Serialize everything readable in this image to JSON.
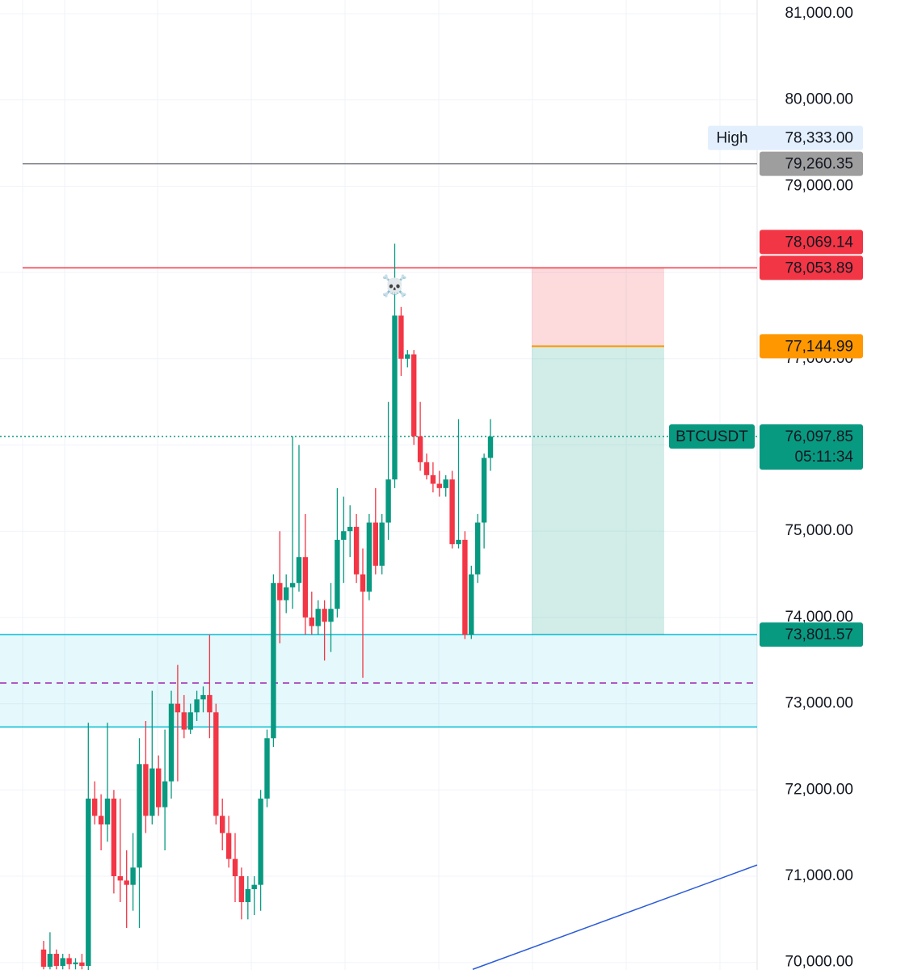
{
  "chart_data": {
    "type": "candlestick",
    "symbol": {
      "name": "BTCUSDT",
      "value": 76097.85,
      "label": "76,097.85",
      "countdown": "05:11:34",
      "color": "#089981"
    },
    "up_color": "#089981",
    "down_color": "#f23645",
    "open": [
      70150,
      69950,
      70100,
      69960,
      70050,
      69980,
      70000,
      69960,
      71900,
      71700,
      71600,
      71900,
      71000,
      70950,
      70900,
      71100,
      72300,
      71700,
      72250,
      71800,
      72100,
      73000,
      72900,
      72700,
      72900,
      73050,
      73100,
      72900,
      71700,
      71500,
      71200,
      71000,
      70700,
      70850,
      70900,
      71900,
      72600,
      74400,
      74200,
      74350,
      74400,
      74700,
      74000,
      73900,
      74100,
      73950,
      74100,
      74900,
      75000,
      75050,
      74500,
      74300,
      75100,
      74600,
      75100,
      75600,
      77500,
      77000,
      77050,
      76100,
      75800,
      75650,
      75550,
      75500,
      75600,
      74850,
      74900,
      73800,
      74500,
      75100,
      75850
    ],
    "high": [
      70250,
      70350,
      70150,
      70100,
      70100,
      70050,
      70100,
      72780,
      72100,
      71950,
      72780,
      72000,
      71900,
      71300,
      71500,
      72600,
      72800,
      73150,
      72400,
      72700,
      73150,
      73450,
      73100,
      73000,
      73150,
      73200,
      73800,
      73000,
      71900,
      71700,
      71500,
      71100,
      71000,
      71000,
      72000,
      72700,
      74500,
      75000,
      74500,
      76100,
      76000,
      75200,
      74300,
      74200,
      74200,
      74400,
      75500,
      75400,
      75300,
      75200,
      74800,
      75200,
      75500,
      75200,
      76500,
      78333,
      77600,
      77100,
      77100,
      76500,
      75900,
      75800,
      75700,
      75650,
      75700,
      76300,
      75000,
      74600,
      75200,
      75900,
      76300
    ],
    "low": [
      69920,
      69920,
      69920,
      69920,
      69920,
      69920,
      69920,
      69900,
      71600,
      71300,
      71400,
      70800,
      70700,
      70400,
      70600,
      70400,
      71500,
      71600,
      71700,
      71300,
      71900,
      72100,
      72600,
      72650,
      72800,
      72900,
      72600,
      71600,
      71300,
      71100,
      70700,
      70500,
      70500,
      70550,
      70600,
      71800,
      72500,
      73700,
      74050,
      74100,
      74300,
      73800,
      73800,
      73800,
      73500,
      73600,
      74000,
      74400,
      74700,
      74400,
      73300,
      74200,
      74500,
      74500,
      74900,
      75500,
      76800,
      76900,
      76000,
      75700,
      75600,
      75450,
      75400,
      75400,
      74800,
      74800,
      73750,
      73750,
      74400,
      74800,
      75700
    ],
    "close": [
      69950,
      70100,
      69960,
      70050,
      69980,
      70000,
      69960,
      71900,
      71700,
      71600,
      71900,
      71000,
      70950,
      70900,
      71100,
      72300,
      71700,
      72250,
      71800,
      72100,
      73000,
      72900,
      72700,
      72900,
      73050,
      73100,
      72900,
      71700,
      71500,
      71200,
      71000,
      70700,
      70850,
      70900,
      71900,
      72600,
      74400,
      74200,
      74350,
      74400,
      74700,
      74000,
      73900,
      74100,
      73950,
      74100,
      74900,
      75000,
      75050,
      74500,
      74300,
      75100,
      74600,
      75100,
      75600,
      77500,
      77000,
      77050,
      76100,
      75800,
      75650,
      75550,
      75500,
      75600,
      74850,
      74900,
      73800,
      74500,
      75100,
      75850,
      76097.85
    ],
    "ylim": [
      69913,
      81159
    ],
    "yticks": [
      {
        "value": 70000,
        "label": "70,000.00"
      },
      {
        "value": 71000,
        "label": "71,000.00"
      },
      {
        "value": 72000,
        "label": "72,000.00"
      },
      {
        "value": 73000,
        "label": "73,000.00"
      },
      {
        "value": 74000,
        "label": "74,000.00"
      },
      {
        "value": 75000,
        "label": "75,000.00"
      },
      {
        "value": 76000,
        "label": "76,000.00"
      },
      {
        "value": 77000,
        "label": "77,000.00"
      },
      {
        "value": 78000,
        "label": "78,000.00"
      },
      {
        "value": 79000,
        "label": "79,000.00"
      },
      {
        "value": 80000,
        "label": "80,000.00"
      },
      {
        "value": 81000,
        "label": "81,000.00"
      }
    ],
    "grid": true,
    "price_tags": [
      {
        "value": 79260.35,
        "label": "79,260.35",
        "color": "#9e9e9e",
        "text_color": "#131722"
      },
      {
        "value": 78069.14,
        "label": "78,069.14",
        "color": "#f23645",
        "text_color": "#ffffff"
      },
      {
        "value": 78053.89,
        "label": "78,053.89",
        "color": "#f23645",
        "text_color": "#ffffff"
      },
      {
        "value": 77144.99,
        "label": "77,144.99",
        "color": "#ff9800",
        "text_color": "#131722"
      },
      {
        "value": 73801.57,
        "label": "73,801.57",
        "color": "#089981",
        "text_color": "#ffffff"
      }
    ],
    "high_marker": {
      "name": "High",
      "value": 78333,
      "label": "78,333.00"
    },
    "annotation": "☠️",
    "zone": {
      "bottom": 72730,
      "mid": 73240,
      "color": "#00bcd4"
    },
    "trend_line": {
      "values": [
        69920,
        71130
      ],
      "color": "#2a5bd7"
    }
  }
}
